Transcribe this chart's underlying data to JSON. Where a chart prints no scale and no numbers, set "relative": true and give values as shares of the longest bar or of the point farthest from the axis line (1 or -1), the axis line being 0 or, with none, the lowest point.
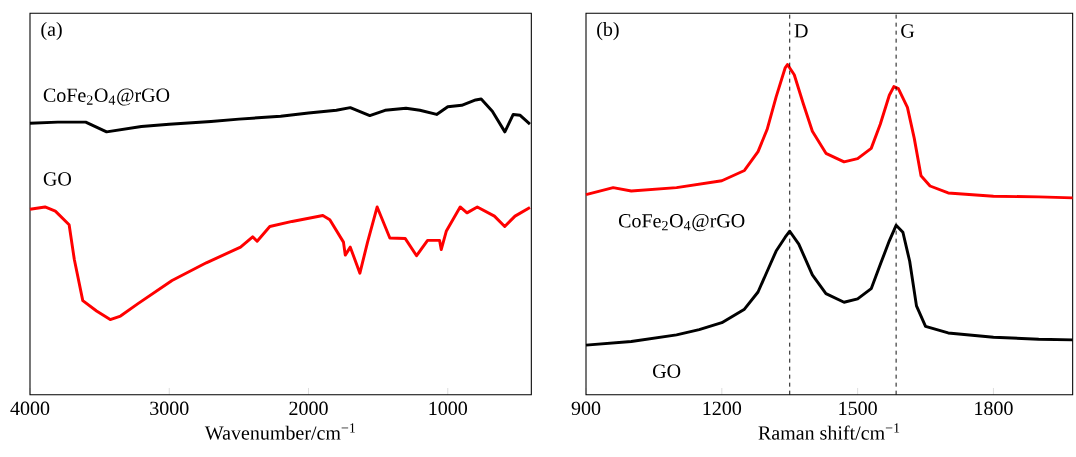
{
  "chart_data": [
    {
      "type": "line",
      "title": "(a)",
      "xlabel": "Wavenumber/cm$^{−1}$",
      "relative": true,
      "xlim": [
        4000,
        400
      ],
      "xticks": [
        4000,
        3000,
        2000,
        1000
      ],
      "series": [
        {
          "name": "CoFe$_{2}$O$_{4}$@rGO",
          "color": "#000000",
          "x": [
            4000,
            3800,
            3600,
            3450,
            3200,
            3000,
            2700,
            2500,
            2200,
            2000,
            1800,
            1700,
            1560,
            1450,
            1300,
            1200,
            1080,
            1000,
            900,
            800,
            760,
            680,
            590,
            530,
            480,
            410
          ],
          "values": [
            0.918,
            0.922,
            0.922,
            0.889,
            0.907,
            0.915,
            0.924,
            0.932,
            0.942,
            0.953,
            0.962,
            0.971,
            0.944,
            0.962,
            0.969,
            0.962,
            0.948,
            0.974,
            0.979,
            0.997,
            1.0,
            0.959,
            0.889,
            0.948,
            0.945,
            0.915
          ]
        },
        {
          "name": "GO",
          "color": "#ff0000",
          "x": [
            4000,
            3892,
            3818,
            3719,
            3682,
            3621,
            3522,
            3424,
            3350,
            3227,
            2980,
            2734,
            2488,
            2401,
            2369,
            2278,
            2118,
            1897,
            1847,
            1749,
            1736,
            1700,
            1631,
            1576,
            1507,
            1416,
            1305,
            1224,
            1145,
            1059,
            1047,
            1010,
            911,
            862,
            788,
            665,
            591,
            517,
            410
          ],
          "values": [
            0.627,
            0.635,
            0.621,
            0.575,
            0.458,
            0.318,
            0.283,
            0.254,
            0.266,
            0.307,
            0.386,
            0.446,
            0.499,
            0.534,
            0.519,
            0.569,
            0.586,
            0.606,
            0.592,
            0.516,
            0.472,
            0.499,
            0.411,
            0.516,
            0.635,
            0.53,
            0.528,
            0.47,
            0.522,
            0.522,
            0.491,
            0.554,
            0.635,
            0.615,
            0.635,
            0.604,
            0.569,
            0.604,
            0.633
          ]
        }
      ]
    },
    {
      "type": "line",
      "title": "(b)",
      "xlabel": "Raman shift/cm$^{−1}$",
      "relative": true,
      "xlim": [
        900,
        1975
      ],
      "xticks": [
        900,
        1200,
        1500,
        1800
      ],
      "ref_lines": [
        {
          "axis": "x",
          "value": 1350,
          "label": "D",
          "color": "#000000",
          "line_style": "dashed"
        },
        {
          "axis": "x",
          "value": 1585,
          "label": "G",
          "color": "#000000",
          "line_style": "dashed"
        }
      ],
      "series": [
        {
          "name": "CoFe$_{2}$O$_{4}$@rGO",
          "color": "#ff0000",
          "x": [
            900,
            960,
            1000,
            1100,
            1200,
            1250,
            1280,
            1300,
            1320,
            1340,
            1345,
            1360,
            1380,
            1400,
            1430,
            1470,
            1500,
            1530,
            1550,
            1570,
            1580,
            1590,
            1610,
            1625,
            1640,
            1660,
            1700,
            1800,
            1900,
            1975
          ],
          "values": [
            0.606,
            0.627,
            0.617,
            0.627,
            0.648,
            0.679,
            0.736,
            0.803,
            0.902,
            0.99,
            1.0,
            0.969,
            0.881,
            0.798,
            0.731,
            0.705,
            0.715,
            0.746,
            0.819,
            0.907,
            0.933,
            0.927,
            0.87,
            0.777,
            0.663,
            0.632,
            0.611,
            0.601,
            0.599,
            0.596
          ]
        },
        {
          "name": "GO",
          "color": "#000000",
          "x": [
            900,
            1000,
            1100,
            1150,
            1200,
            1250,
            1280,
            1300,
            1320,
            1340,
            1350,
            1370,
            1400,
            1430,
            1470,
            1500,
            1530,
            1550,
            1570,
            1585,
            1600,
            1615,
            1630,
            1650,
            1700,
            1800,
            1900,
            1975
          ],
          "values": [
            0.15,
            0.161,
            0.181,
            0.197,
            0.218,
            0.259,
            0.311,
            0.373,
            0.435,
            0.477,
            0.495,
            0.456,
            0.363,
            0.306,
            0.28,
            0.29,
            0.321,
            0.394,
            0.466,
            0.513,
            0.492,
            0.404,
            0.269,
            0.207,
            0.187,
            0.174,
            0.168,
            0.166
          ]
        }
      ]
    }
  ]
}
